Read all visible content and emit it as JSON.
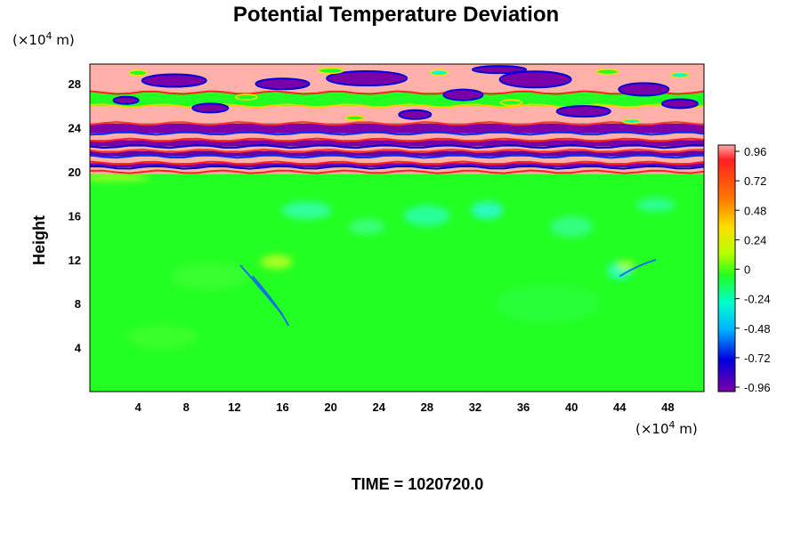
{
  "chart_data": {
    "type": "heatmap",
    "title": "Potential Temperature Deviation",
    "ylabel": "Height",
    "xlabel": "",
    "x_unit_prefix": "(×10",
    "x_unit_exp": "4",
    "x_unit_suffix": " m)",
    "y_unit_prefix": "(×10",
    "y_unit_exp": "4",
    "y_unit_suffix": " m)",
    "xlim": [
      0,
      51
    ],
    "ylim": [
      0,
      29.8
    ],
    "x_ticks": [
      "4",
      "8",
      "12",
      "16",
      "20",
      "24",
      "28",
      "32",
      "36",
      "40",
      "44",
      "48"
    ],
    "y_ticks": [
      "4",
      "8",
      "12",
      "16",
      "20",
      "24",
      "28"
    ],
    "colorbar": {
      "range": [
        -1.0,
        1.0
      ],
      "tick_labels": [
        "0.96",
        "0.72",
        "0.48",
        "0.24",
        "0",
        "-0.24",
        "-0.48",
        "-0.72",
        "-0.96"
      ]
    },
    "field_description_by_height": [
      {
        "z_range": [
          0,
          19.8
        ],
        "value": 0.0,
        "note": "near-zero deviation, green with faint cyan/yellow swirls"
      },
      {
        "z_range": [
          19.8,
          29.8
        ],
        "value": "alternating +/-0.96 bands",
        "note": "strong banded structure in upper layer"
      }
    ]
  },
  "footer": {
    "time_text": "TIME = 1020720.0"
  },
  "colors": {
    "background": "#ffffff",
    "lower_layer": "#22ff22",
    "positive_max": "#ffaaaa",
    "negative_max": "#7a00a8"
  }
}
